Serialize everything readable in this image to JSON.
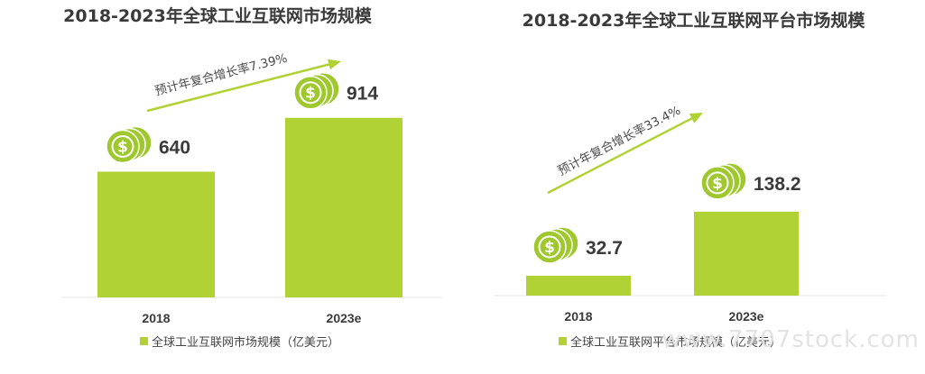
{
  "colors": {
    "bar": "#b0d235",
    "coin_outer": "#9ec82d",
    "coin_inner": "#ffffff",
    "arrow": "#b0d235",
    "text": "#3a3a3a",
    "axis": "#e6e6e6"
  },
  "watermark": "www.7707stock.com",
  "chart_data": [
    {
      "type": "bar",
      "title": "2018-2023年全球工业互联网市场规模",
      "categories": [
        "2018",
        "2023e"
      ],
      "series": [
        {
          "name": "全球工业互联网市场规模（亿美元）",
          "values": [
            640,
            914
          ]
        }
      ],
      "data_labels": [
        "640",
        "914"
      ],
      "annotation": "预计年复合增长率7.39%",
      "legend_position": "bottom",
      "xlabel": "",
      "ylabel": "",
      "ylim": [
        0,
        1000
      ],
      "grid": false,
      "icons": [
        "dollar-coin-icon",
        "dollar-coin-icon"
      ]
    },
    {
      "type": "bar",
      "title": "2018-2023年全球工业互联网平台市场规模",
      "categories": [
        "2018",
        "2023e"
      ],
      "series": [
        {
          "name": "全球工业互联网平台市场规模（亿美元）",
          "values": [
            32.7,
            138.2
          ]
        }
      ],
      "data_labels": [
        "32.7",
        "138.2"
      ],
      "annotation": "预计年复合增长率33.4%",
      "legend_position": "bottom",
      "xlabel": "",
      "ylabel": "",
      "ylim": [
        0,
        190
      ],
      "grid": false,
      "icons": [
        "dollar-coin-icon",
        "dollar-coin-icon"
      ]
    }
  ]
}
